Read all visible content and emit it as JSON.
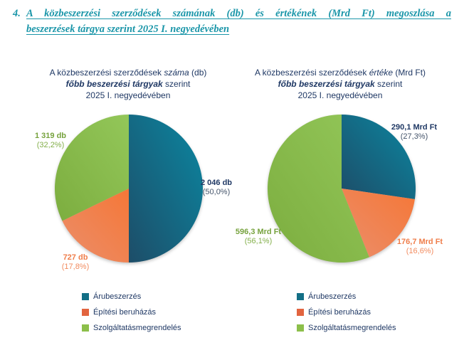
{
  "heading": {
    "number": "4.",
    "line1": "A közbeszerzési szerződések számának (db) és értékének (Mrd Ft) megoszlása a",
    "line2": "beszerzések tárgya szerint 2025 I. negyedévében"
  },
  "colors": {
    "heading_teal": "#1b96a9",
    "title_navy": "#1f3864",
    "percent_slate": "#44546a",
    "slice_teal": "#0f7f97",
    "slice_orange": "#f08048",
    "slice_green": "#8dc04d",
    "label_green": "#76a23d",
    "label_orange": "#ef7d4a"
  },
  "pie_gradients": [
    {
      "from": "#1d4d68",
      "to": "#0b87a1"
    },
    {
      "from": "#eb8e6b",
      "to": "#f57737"
    },
    {
      "from": "#7cad3f",
      "to": "#93c759"
    }
  ],
  "legend": {
    "items": [
      {
        "label": "Árubeszerzés",
        "color": "#136f86"
      },
      {
        "label": "Építési beruházás",
        "color": "#e2643f"
      },
      {
        "label": "Szolgáltatásmegrendelés",
        "color": "#8cbf4a"
      }
    ]
  },
  "chart_data": [
    {
      "type": "pie",
      "id": "contract-count-pie",
      "title_line1_prefix": "A közbeszerzési szerződések ",
      "title_line1_italic": "száma",
      "title_line1_suffix": " (db)",
      "title_line2_bolditalic": "főbb beszerzési tárgyak",
      "title_line2_suffix": " szerint",
      "title_line3": "2025 I. negyedévében",
      "unit": "db",
      "categories": [
        "Árubeszerzés",
        "Építési beruházás",
        "Szolgáltatásmegrendelés"
      ],
      "values": [
        2046,
        727,
        1319
      ],
      "percents": [
        50.0,
        17.8,
        32.2
      ],
      "labels": [
        {
          "value": "2 046 db",
          "percent": "(50,0%)"
        },
        {
          "value": "727 db",
          "percent": "(17,8%)"
        },
        {
          "value": "1 319 db",
          "percent": "(32,2%)"
        }
      ],
      "start_angle_deg": 0,
      "direction": "clockwise"
    },
    {
      "type": "pie",
      "id": "contract-value-pie",
      "title_line1_prefix": "A közbeszerzési szerződések ",
      "title_line1_italic": "értéke",
      "title_line1_suffix": " (Mrd Ft)",
      "title_line2_bolditalic": "főbb beszerzési tárgyak",
      "title_line2_suffix": " szerint",
      "title_line3": "2025 I. negyedévében",
      "unit": "Mrd Ft",
      "categories": [
        "Árubeszerzés",
        "Építési beruházás",
        "Szolgáltatásmegrendelés"
      ],
      "values": [
        290.1,
        176.7,
        596.3
      ],
      "percents": [
        27.3,
        16.6,
        56.1
      ],
      "labels": [
        {
          "value": "290,1 Mrd Ft",
          "percent": "(27,3%)"
        },
        {
          "value": "176,7 Mrd Ft",
          "percent": "(16,6%)"
        },
        {
          "value": "596,3 Mrd Ft",
          "percent": "(56,1%)"
        }
      ],
      "start_angle_deg": 0,
      "direction": "clockwise"
    }
  ]
}
